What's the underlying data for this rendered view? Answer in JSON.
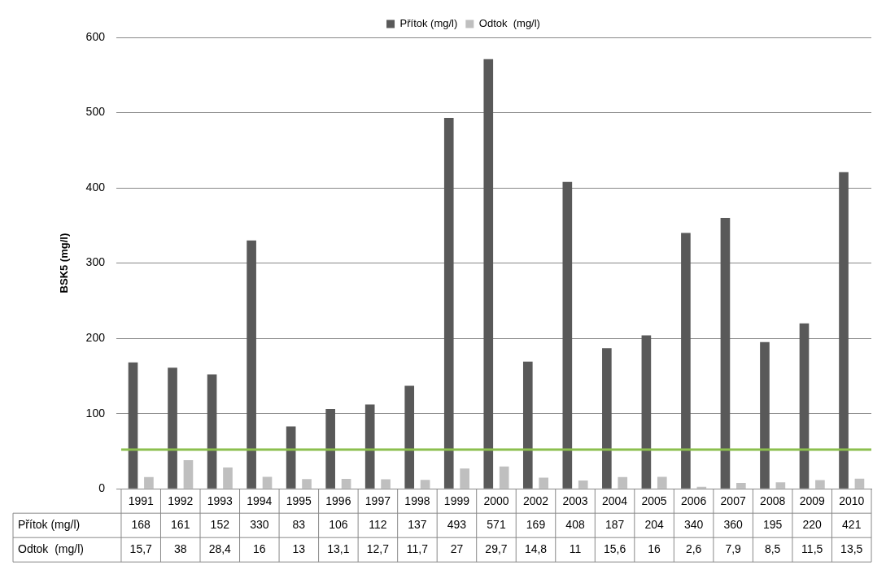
{
  "chart_data": {
    "type": "bar",
    "ylabel": "BSK5 (mg/l)",
    "categories": [
      "1991",
      "1992",
      "1993",
      "1994",
      "1995",
      "1996",
      "1997",
      "1998",
      "1999",
      "2000",
      "2002",
      "2003",
      "2004",
      "2005",
      "2006",
      "2007",
      "2008",
      "2009",
      "2010"
    ],
    "series": [
      {
        "name": "Přítok (mg/l)",
        "color": "#595959",
        "values": [
          168,
          161,
          152,
          330,
          83,
          106,
          112,
          137,
          493,
          571,
          169,
          408,
          187,
          204,
          340,
          360,
          195,
          220,
          421
        ],
        "value_labels": [
          "168",
          "161",
          "152",
          "330",
          "83",
          "106",
          "112",
          "137",
          "493",
          "571",
          "169",
          "408",
          "187",
          "204",
          "340",
          "360",
          "195",
          "220",
          "421"
        ]
      },
      {
        "name": "Odtok  (mg/l)",
        "color": "#bfbfbf",
        "values": [
          15.7,
          38,
          28.4,
          16,
          13,
          13.1,
          12.7,
          11.7,
          27,
          29.7,
          14.8,
          11,
          15.6,
          16,
          2.6,
          7.9,
          8.5,
          11.5,
          13.5
        ],
        "value_labels": [
          "15,7",
          "38",
          "28,4",
          "16",
          "13",
          "13,1",
          "12,7",
          "11,7",
          "27",
          "29,7",
          "14,8",
          "11",
          "15,6",
          "16",
          "2,6",
          "7,9",
          "8,5",
          "11,5",
          "13,5"
        ]
      }
    ],
    "ylim": [
      0,
      600
    ],
    "yticks": [
      0,
      100,
      200,
      300,
      400,
      500,
      600
    ],
    "grid": "y",
    "legend": "top",
    "ref_lines": [
      {
        "axis": "y",
        "value": 52,
        "color": "#8cbf4f"
      }
    ]
  }
}
